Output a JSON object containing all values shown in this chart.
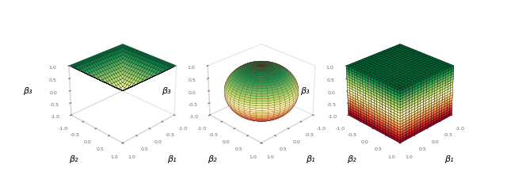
{
  "background_color": "#ffffff",
  "axis_labels": [
    "β₁",
    "β₂",
    "β₃"
  ],
  "colormap": "RdYlGn",
  "grid_resolution": 25,
  "sphere_resolution": 40,
  "cube_resolution": 20,
  "elev": 28,
  "azim": 45,
  "figsize": [
    6.4,
    2.31
  ],
  "dpi": 100,
  "tick_fontsize": 4.5,
  "label_fontsize": 8,
  "tick_color": "dimgray",
  "pane_edge_color": "lightgray",
  "edge_color_surface": "k",
  "edge_lw": 0.2
}
